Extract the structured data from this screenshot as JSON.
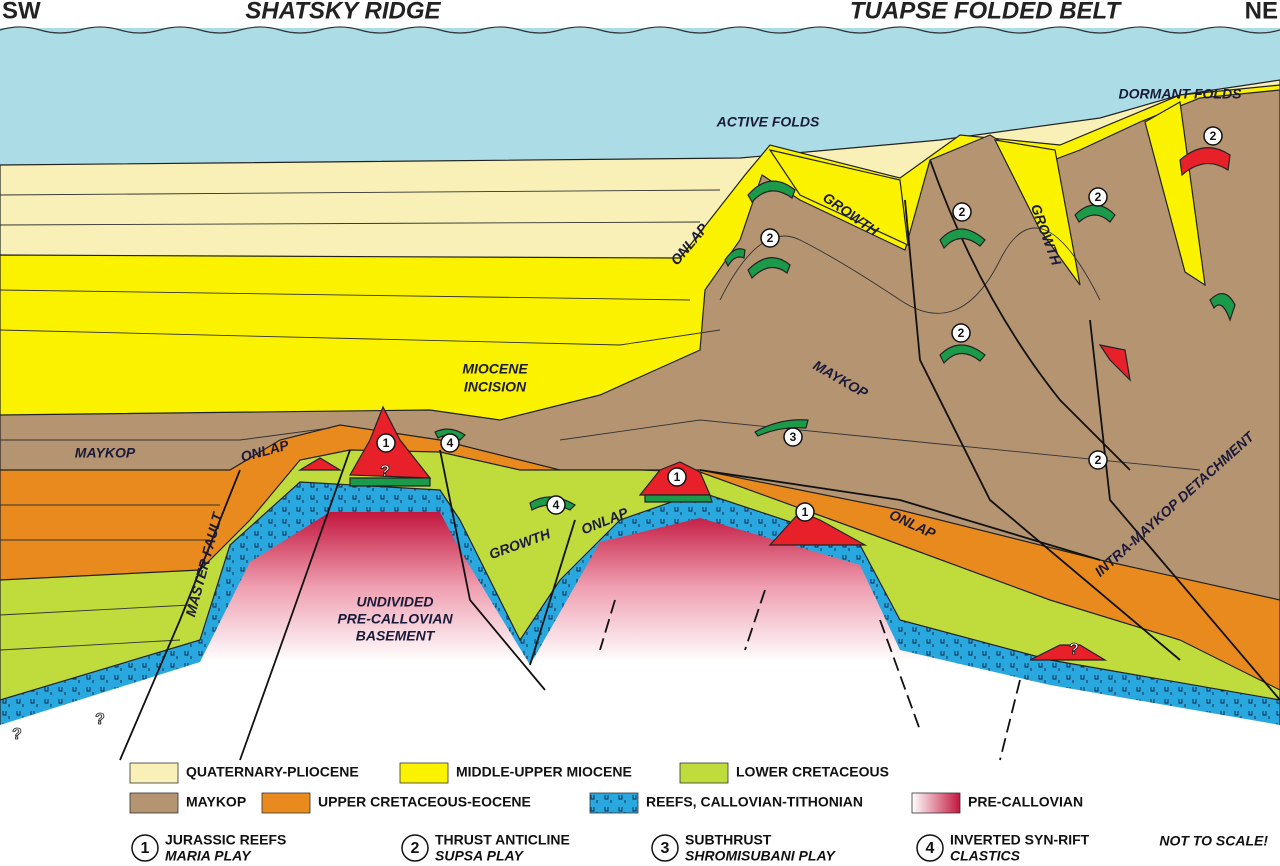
{
  "header": {
    "left_end": "SW",
    "left_title": "SHATSKY RIDGE",
    "right_title": "TUAPSE FOLDED BELT",
    "right_end": "NE"
  },
  "labels": [
    "DORMANT FOLDS",
    "ACTIVE FOLDS",
    "ONLAP",
    "GROWTH",
    "GROWTH",
    "MIOCENE",
    "INCISION",
    "MAYKOP",
    "ONLAP",
    "MAYKOP",
    "ONLAP",
    "GROWTH",
    "ONLAP",
    "MASTER FAULT",
    "UNDIVIDED",
    "PRE-CALLOVIAN",
    "BASEMENT",
    "INTRA-MAYKOP DETACHMENT"
  ],
  "markers": [
    "1",
    "1",
    "1",
    "2",
    "2",
    "2",
    "2",
    "2",
    "2",
    "3",
    "4",
    "4"
  ],
  "question_marks": [
    "?",
    "?",
    "?",
    "?"
  ],
  "legend": [
    "QUATERNARY-PLIOCENE",
    "MIDDLE-UPPER MIOCENE",
    "LOWER CRETACEOUS",
    "MAYKOP",
    "UPPER CRETACEOUS-EOCENE",
    "REEFS, CALLOVIAN-TITHONIAN",
    "PRE-CALLOVIAN"
  ],
  "plays": [
    {
      "number": "1",
      "title": "JURASSIC REEFS",
      "subtitle": "MARIA PLAY"
    },
    {
      "number": "2",
      "title": "THRUST ANTICLINE",
      "subtitle": "SUPSA PLAY"
    },
    {
      "number": "3",
      "title": "SUBTHRUST",
      "subtitle": "SHROMISUBANI PLAY"
    },
    {
      "number": "4",
      "title": "INVERTED SYN-RIFT",
      "subtitle": "CLASTICS"
    }
  ],
  "note": "NOT TO SCALE!"
}
